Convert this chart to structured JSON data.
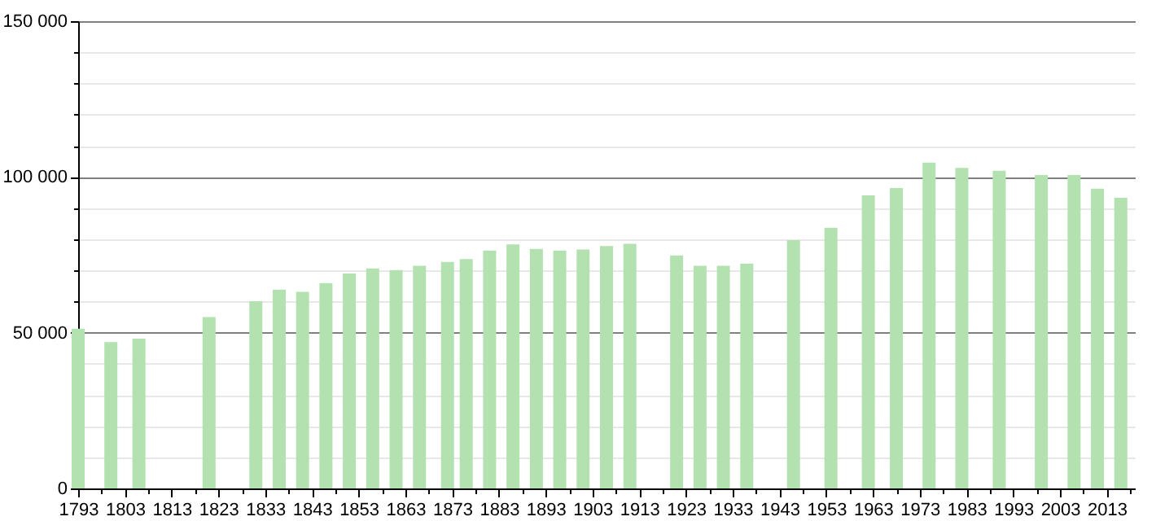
{
  "chart_data": {
    "type": "bar",
    "x": [
      1793,
      1800,
      1806,
      1821,
      1831,
      1836,
      1841,
      1846,
      1851,
      1856,
      1861,
      1866,
      1872,
      1876,
      1881,
      1886,
      1891,
      1896,
      1901,
      1906,
      1911,
      1921,
      1926,
      1931,
      1936,
      1946,
      1954,
      1962,
      1968,
      1975,
      1982,
      1990,
      1999,
      2006,
      2011,
      2016
    ],
    "values": [
      51300,
      47000,
      48100,
      55000,
      60100,
      63800,
      63100,
      65900,
      69000,
      70600,
      70100,
      71500,
      72700,
      73600,
      76400,
      78300,
      76900,
      76400,
      76700,
      77800,
      78500,
      74800,
      71500,
      71500,
      72200,
      79700,
      83700,
      94100,
      96400,
      104600,
      102900,
      102000,
      100600,
      100600,
      96200,
      93300
    ],
    "color": "#b3e2b0",
    "xlim": [
      1793,
      2019
    ],
    "xticks": [
      1793,
      {
        "value": 1798,
        "label": null
      },
      1803,
      {
        "value": 1808,
        "label": null
      },
      1813,
      {
        "value": 1818,
        "label": null
      },
      1823,
      {
        "value": 1828,
        "label": null
      },
      1833,
      {
        "value": 1838,
        "label": null
      },
      1843,
      {
        "value": 1848,
        "label": null
      },
      1853,
      {
        "value": 1858,
        "label": null
      },
      1863,
      {
        "value": 1868,
        "label": null
      },
      1873,
      {
        "value": 1878,
        "label": null
      },
      1883,
      {
        "value": 1888,
        "label": null
      },
      1893,
      {
        "value": 1898,
        "label": null
      },
      1903,
      {
        "value": 1908,
        "label": null
      },
      1913,
      {
        "value": 1918,
        "label": null
      },
      1923,
      {
        "value": 1928,
        "label": null
      },
      1933,
      {
        "value": 1938,
        "label": null
      },
      1943,
      {
        "value": 1948,
        "label": null
      },
      1953,
      {
        "value": 1958,
        "label": null
      },
      1963,
      {
        "value": 1968,
        "label": null
      },
      1973,
      {
        "value": 1978,
        "label": null
      },
      1983,
      {
        "value": 1988,
        "label": null
      },
      1993,
      {
        "value": 1998,
        "label": null
      },
      2003,
      {
        "value": 2008,
        "label": null
      },
      2013,
      {
        "value": 2018,
        "label": null
      }
    ],
    "ylim": [
      0,
      150000
    ],
    "yticks": [
      {
        "value": 0,
        "label": "0"
      },
      {
        "value": 10000,
        "label": null
      },
      {
        "value": 20000,
        "label": null
      },
      {
        "value": 30000,
        "label": null
      },
      {
        "value": 40000,
        "label": null
      },
      {
        "value": 50000,
        "label": "50 000"
      },
      {
        "value": 60000,
        "label": null
      },
      {
        "value": 70000,
        "label": null
      },
      {
        "value": 80000,
        "label": null
      },
      {
        "value": 90000,
        "label": null
      },
      {
        "value": 100000,
        "label": "100 000"
      },
      {
        "value": 110000,
        "label": null
      },
      {
        "value": 120000,
        "label": null
      },
      {
        "value": 130000,
        "label": null
      },
      {
        "value": 140000,
        "label": null
      },
      {
        "value": 150000,
        "label": "150 000"
      }
    ],
    "grid": "y"
  }
}
